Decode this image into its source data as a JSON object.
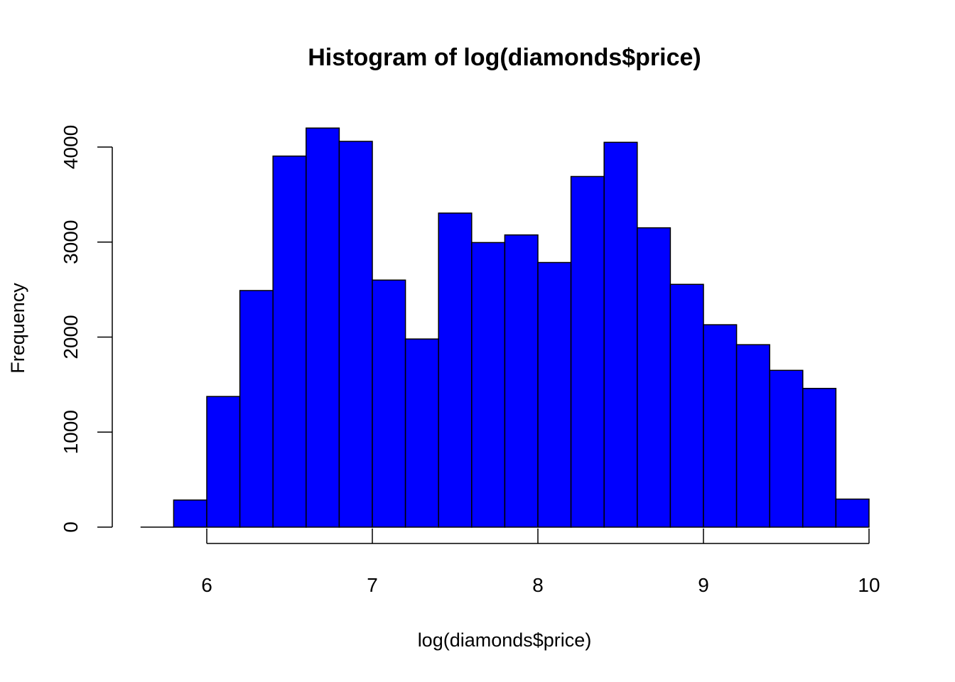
{
  "chart_data": {
    "type": "bar",
    "title": "Histogram of log(diamonds$price)",
    "xlabel": "log(diamonds$price)",
    "ylabel": "Frequency",
    "bin_edges": [
      5.6,
      5.8,
      6.0,
      6.2,
      6.4,
      6.6,
      6.8,
      7.0,
      7.2,
      7.4,
      7.6,
      7.8,
      8.0,
      8.2,
      8.4,
      8.6,
      8.8,
      9.0,
      9.2,
      9.4,
      9.6,
      9.8,
      10.0
    ],
    "values": [
      0,
      285,
      1375,
      2490,
      3905,
      4200,
      4060,
      2600,
      1980,
      3305,
      2995,
      3075,
      2785,
      3690,
      4050,
      3150,
      2555,
      2130,
      1920,
      1650,
      1460,
      295
    ],
    "xlim": [
      5.6,
      10.0
    ],
    "ylim": [
      0,
      4200
    ],
    "x_ticks": [
      6,
      7,
      8,
      9,
      10
    ],
    "x_tick_labels": [
      "6",
      "7",
      "8",
      "9",
      "10"
    ],
    "y_ticks": [
      0,
      1000,
      2000,
      3000,
      4000
    ],
    "y_tick_labels": [
      "0",
      "1000",
      "2000",
      "3000",
      "4000"
    ],
    "bar_color": "#0000ff",
    "border_color": "#000000",
    "grid": false,
    "legend": false
  }
}
